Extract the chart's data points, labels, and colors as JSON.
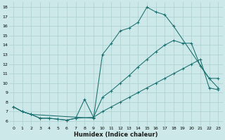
{
  "title": "",
  "xlabel": "Humidex (Indice chaleur)",
  "ylabel": "",
  "background_color": "#cce8e8",
  "line_color": "#1a6e6e",
  "grid_color": "#aacfcf",
  "xlim": [
    -0.5,
    23.5
  ],
  "ylim": [
    5.5,
    18.5
  ],
  "xticks": [
    0,
    1,
    2,
    3,
    4,
    5,
    6,
    7,
    8,
    9,
    10,
    11,
    12,
    13,
    14,
    15,
    16,
    17,
    18,
    19,
    20,
    21,
    22,
    23
  ],
  "yticks": [
    6,
    7,
    8,
    9,
    10,
    11,
    12,
    13,
    14,
    15,
    16,
    17,
    18
  ],
  "series": [
    {
      "x": [
        0,
        1,
        2,
        9,
        10,
        11,
        12,
        13,
        14,
        15,
        16,
        17,
        18,
        22,
        23
      ],
      "y": [
        7.5,
        7.0,
        6.7,
        6.3,
        13.0,
        14.2,
        15.5,
        15.8,
        16.4,
        18.0,
        17.5,
        17.2,
        16.0,
        10.5,
        9.5
      ]
    },
    {
      "x": [
        0,
        1,
        2,
        3,
        4,
        5,
        6,
        7,
        9,
        10,
        11,
        12,
        13,
        14,
        15,
        16,
        17,
        18,
        19,
        20,
        21,
        22,
        23
      ],
      "y": [
        7.5,
        7.0,
        6.7,
        6.3,
        6.3,
        6.2,
        6.1,
        6.3,
        6.4,
        8.5,
        9.2,
        10.0,
        10.8,
        11.7,
        12.5,
        13.3,
        14.0,
        14.5,
        14.2,
        14.2,
        11.8,
        10.5,
        10.5
      ]
    },
    {
      "x": [
        0,
        1,
        2,
        3,
        4,
        5,
        6,
        7,
        8,
        9,
        10,
        11,
        12,
        13,
        14,
        15,
        16,
        17,
        18,
        19,
        20,
        21,
        22,
        23
      ],
      "y": [
        7.5,
        7.0,
        6.7,
        6.3,
        6.3,
        6.2,
        6.1,
        6.3,
        8.3,
        6.4,
        7.0,
        7.5,
        8.0,
        8.5,
        9.0,
        9.5,
        10.0,
        10.5,
        11.0,
        11.5,
        12.0,
        12.5,
        9.5,
        9.3
      ]
    }
  ]
}
